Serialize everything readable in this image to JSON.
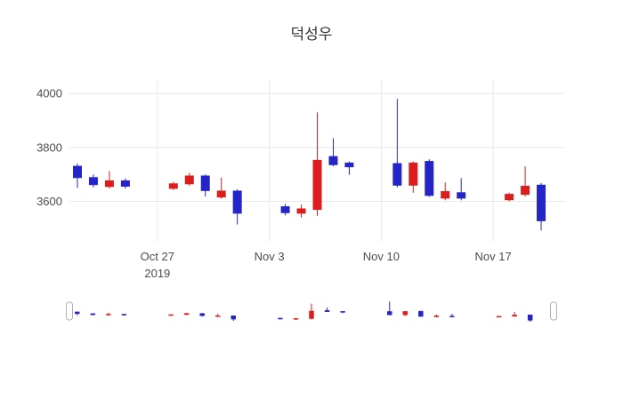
{
  "title": "덕성우",
  "chart_data": {
    "type": "candlestick",
    "title": "덕성우",
    "x_range": [
      "2019-10-21T12:00:00Z",
      "2019-11-21T12:00:00Z"
    ],
    "ylim": [
      3450,
      4050
    ],
    "grid": true,
    "legend": false,
    "rangeslider": true,
    "y_ticks": [
      {
        "value": 4000,
        "label": "4000"
      },
      {
        "value": 3800,
        "label": "3800"
      },
      {
        "value": 3600,
        "label": "3600"
      }
    ],
    "x_ticks": [
      {
        "date": "2019-10-27",
        "label": "Oct 27",
        "sublabel": "2019"
      },
      {
        "date": "2019-11-03",
        "label": "Nov 3",
        "sublabel": ""
      },
      {
        "date": "2019-11-10",
        "label": "Nov 10",
        "sublabel": ""
      },
      {
        "date": "2019-11-17",
        "label": "Nov 17",
        "sublabel": ""
      }
    ],
    "dates": [
      "2019-10-22",
      "2019-10-23",
      "2019-10-24",
      "2019-10-25",
      "2019-10-28",
      "2019-10-29",
      "2019-10-30",
      "2019-10-31",
      "2019-11-01",
      "2019-11-04",
      "2019-11-05",
      "2019-11-06",
      "2019-11-07",
      "2019-11-08",
      "2019-11-11",
      "2019-11-12",
      "2019-11-13",
      "2019-11-14",
      "2019-11-15",
      "2019-11-18",
      "2019-11-19",
      "2019-11-20"
    ],
    "open": [
      3730,
      3688,
      3655,
      3676,
      3648,
      3665,
      3694,
      3616,
      3638,
      3580,
      3556,
      3570,
      3766,
      3742,
      3740,
      3660,
      3748,
      3612,
      3632,
      3606,
      3626,
      3660
    ],
    "high": [
      3740,
      3700,
      3712,
      3685,
      3672,
      3706,
      3700,
      3688,
      3645,
      3590,
      3588,
      3930,
      3834,
      3748,
      3980,
      3748,
      3756,
      3670,
      3686,
      3632,
      3730,
      3668
    ],
    "low": [
      3650,
      3652,
      3648,
      3648,
      3642,
      3658,
      3618,
      3610,
      3514,
      3548,
      3540,
      3546,
      3730,
      3698,
      3652,
      3632,
      3616,
      3604,
      3604,
      3600,
      3618,
      3492
    ],
    "close": [
      3688,
      3662,
      3676,
      3656,
      3665,
      3694,
      3640,
      3638,
      3556,
      3558,
      3572,
      3752,
      3736,
      3728,
      3660,
      3742,
      3622,
      3636,
      3612,
      3626,
      3656,
      3528
    ],
    "colors": {
      "increasing": "#dd1d1d",
      "decreasing": "#2424c8",
      "grid": "#e8e8e8",
      "axis_text": "#4c4c4c",
      "background": "#ffffff",
      "handle_border": "#b0b0b0"
    }
  }
}
